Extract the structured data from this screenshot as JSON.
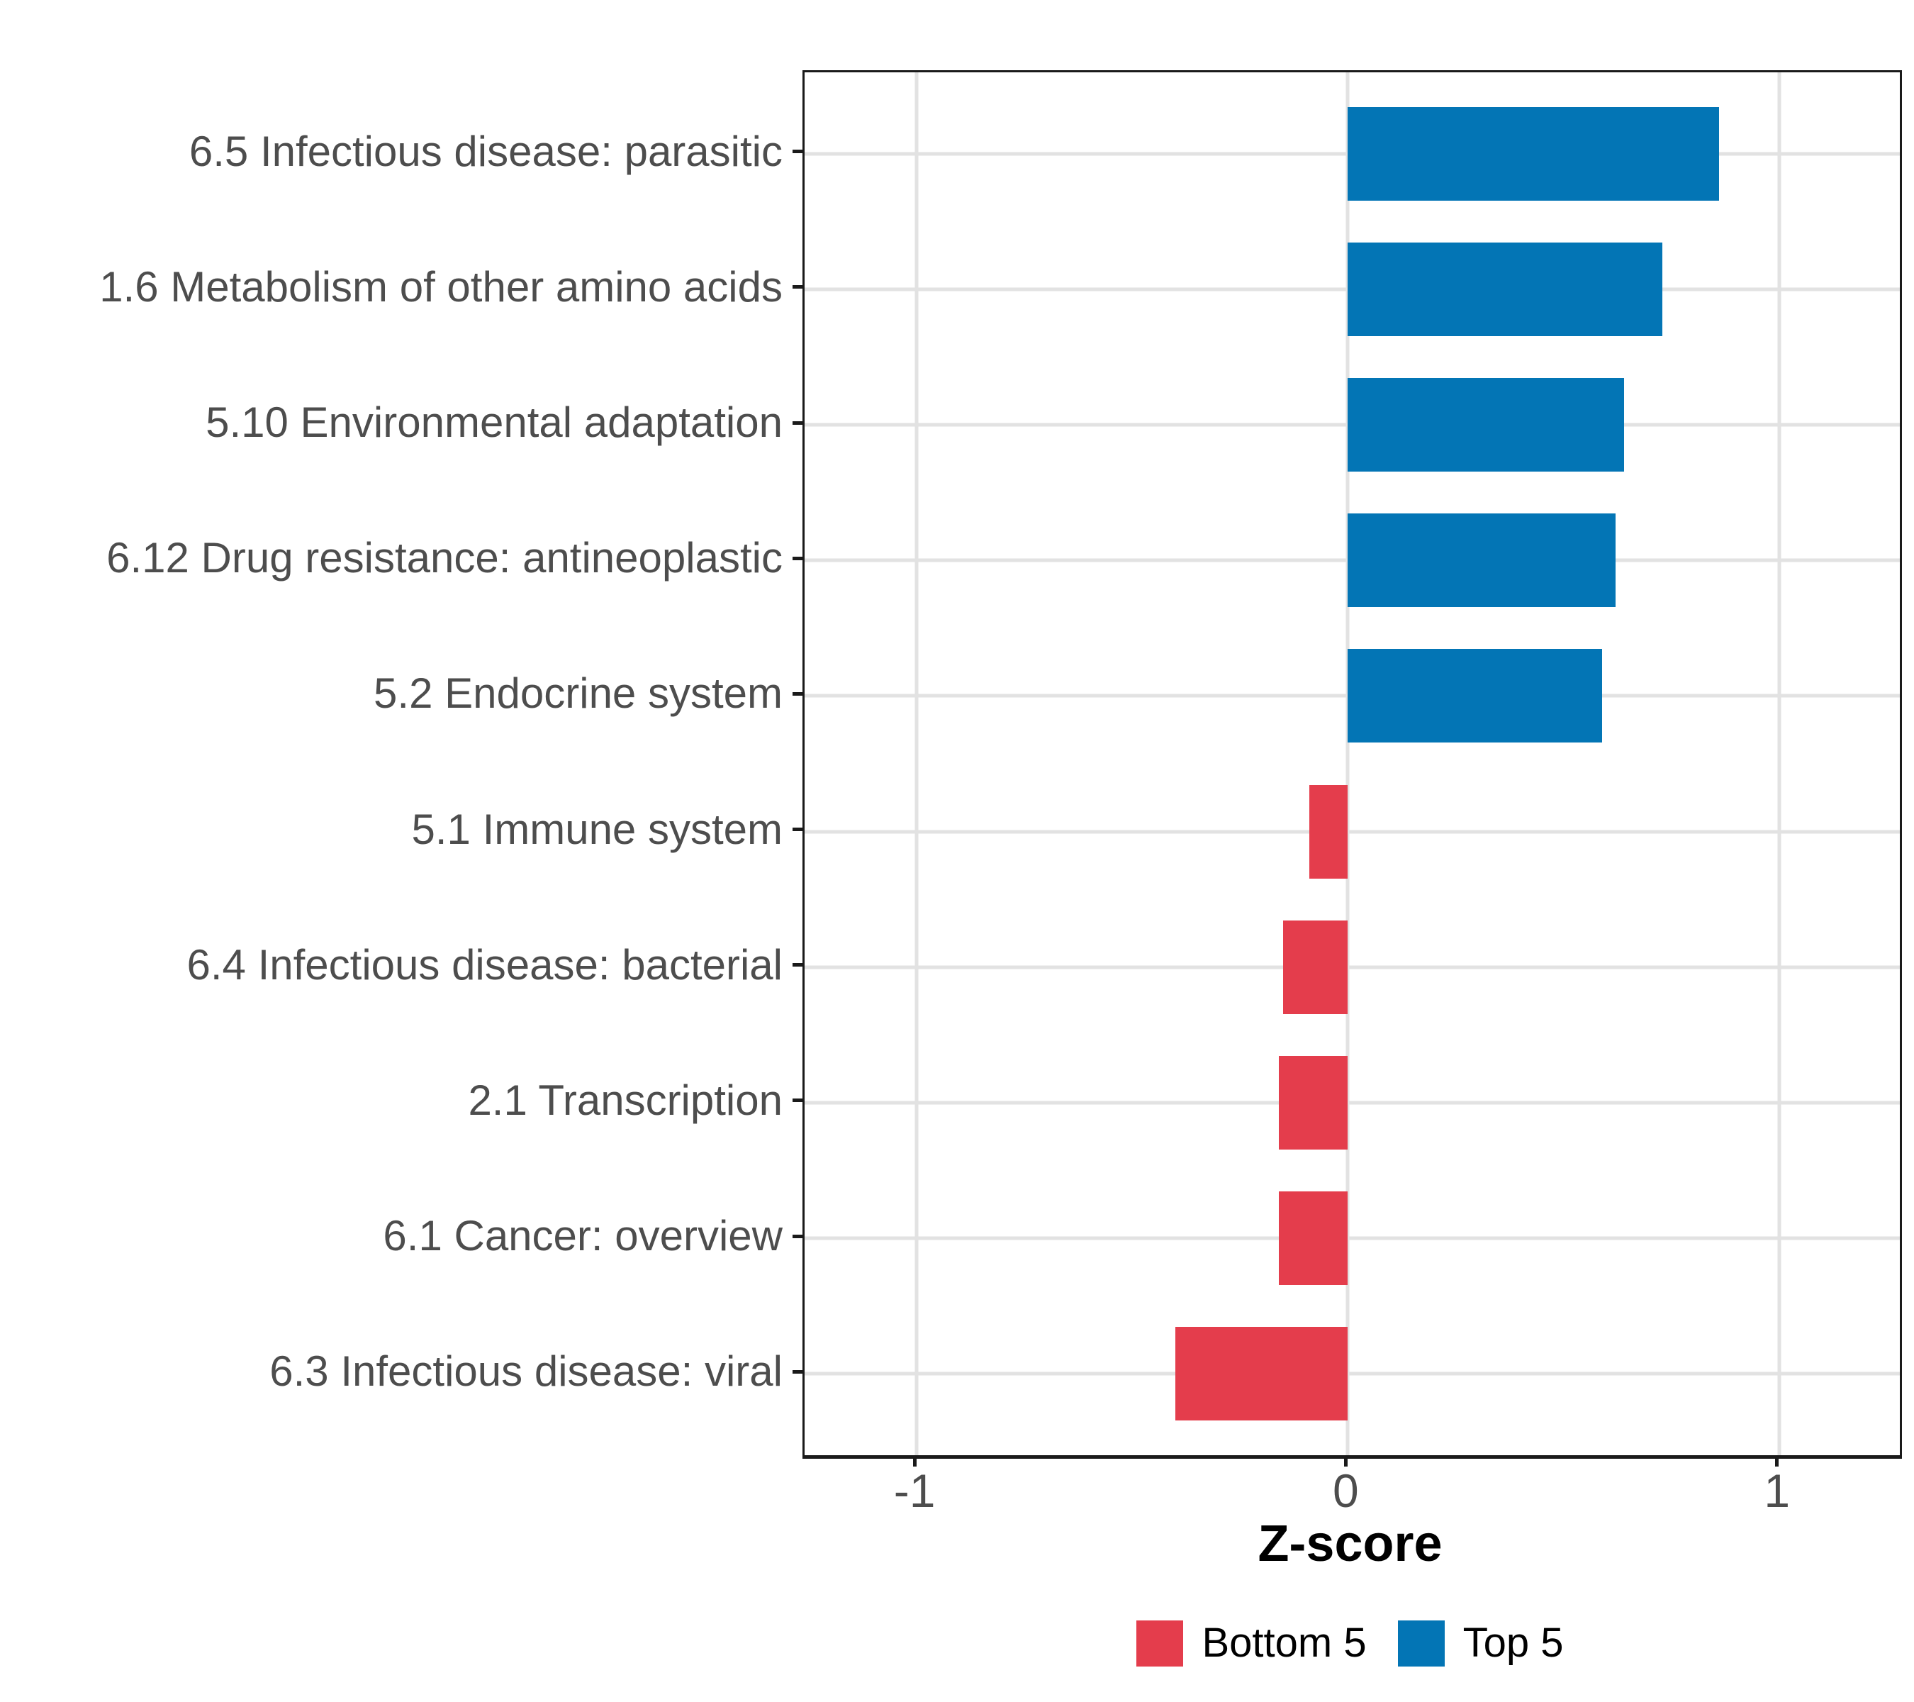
{
  "chart_data": {
    "type": "bar",
    "orientation": "horizontal",
    "title": "",
    "xlabel": "Z-score",
    "ylabel": "",
    "xlim": [
      -1.26,
      1.28
    ],
    "x_ticks": [
      -1,
      0,
      1
    ],
    "x_tick_labels": [
      "-1",
      "0",
      "1"
    ],
    "grid": "major-only",
    "panel_border": true,
    "legend_position": "bottom-center",
    "bar_groups": [
      "Bottom 5",
      "Top 5"
    ],
    "bars": [
      {
        "category": "6.5 Infectious disease: parasitic",
        "value": 0.86,
        "group": "Top 5"
      },
      {
        "category": "1.6 Metabolism of other amino acids",
        "value": 0.73,
        "group": "Top 5"
      },
      {
        "category": "5.10 Environmental adaptation",
        "value": 0.64,
        "group": "Top 5"
      },
      {
        "category": "6.12 Drug resistance: antineoplastic",
        "value": 0.62,
        "group": "Top 5"
      },
      {
        "category": "5.2 Endocrine system",
        "value": 0.59,
        "group": "Top 5"
      },
      {
        "category": "5.1 Immune system",
        "value": -0.09,
        "group": "Bottom 5"
      },
      {
        "category": "6.4 Infectious disease: bacterial",
        "value": -0.15,
        "group": "Bottom 5"
      },
      {
        "category": "2.1 Transcription",
        "value": -0.16,
        "group": "Bottom 5"
      },
      {
        "category": "6.1 Cancer: overview",
        "value": -0.16,
        "group": "Bottom 5"
      },
      {
        "category": "6.3 Infectious disease: viral",
        "value": -0.4,
        "group": "Bottom 5"
      }
    ],
    "legend": [
      {
        "label": "Bottom 5",
        "color": "#E43D4C"
      },
      {
        "label": "Top 5",
        "color": "#0375B5"
      }
    ],
    "colors": {
      "Bottom 5": "#E43D4C",
      "Top 5": "#0375B5",
      "gridline": "#E2E2E2",
      "axis_text": "#4D4D4D",
      "axis_line": "#1A1A1A",
      "title_text": "#000000",
      "background": "#FFFFFF"
    }
  }
}
